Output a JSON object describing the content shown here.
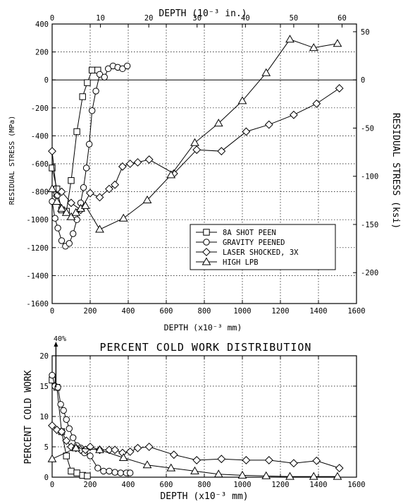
{
  "chart_data": [
    {
      "type": "line",
      "title": "",
      "xlabel": "DEPTH (x10⁻³ mm)",
      "ylabel": "RESIDUAL STRESS (MPa)",
      "x2label": "DEPTH (10⁻³ in.)",
      "y2label": "RESIDUAL STRESS (ksi)",
      "xlim": [
        0,
        1600
      ],
      "ylim": [
        -1600,
        400
      ],
      "x2lim": [
        0,
        62.99
      ],
      "y2lim": [
        -232.06,
        58.02
      ],
      "xticks": [
        "0",
        "200",
        "400",
        "600",
        "800",
        "1000",
        "1200",
        "1400",
        "1600"
      ],
      "yticks": [
        "400",
        "200",
        "0",
        "-200",
        "-400",
        "-600",
        "-800",
        "-1000",
        "-1200",
        "-1400",
        "-1600"
      ],
      "x2ticks": [
        "0",
        "10",
        "20",
        "30",
        "40",
        "50",
        "60"
      ],
      "y2ticks": [
        "50",
        "0",
        "-50",
        "-100",
        "-150",
        "-200"
      ],
      "grid": true,
      "zero_line": true,
      "legend_position": "bottom-right",
      "series": [
        {
          "name": "8A SHOT PEEN",
          "marker": "square",
          "x": [
            0,
            25,
            50,
            75,
            100,
            130,
            160,
            185,
            210,
            240
          ],
          "y": [
            -630,
            -780,
            -930,
            -940,
            -720,
            -370,
            -120,
            -20,
            70,
            70
          ]
        },
        {
          "name": "GRAVITY PEENED",
          "marker": "circle",
          "x": [
            0,
            15,
            30,
            50,
            70,
            90,
            110,
            130,
            150,
            165,
            180,
            195,
            210,
            230,
            250,
            275,
            295,
            320,
            345,
            370,
            395
          ],
          "y": [
            -870,
            -990,
            -1060,
            -1150,
            -1190,
            -1170,
            -1100,
            -1000,
            -880,
            -770,
            -630,
            -460,
            -220,
            -80,
            40,
            20,
            80,
            100,
            90,
            80,
            100
          ]
        },
        {
          "name": "LASER SHOCKED, 3X",
          "marker": "diamond",
          "x": [
            0,
            25,
            50,
            100,
            150,
            200,
            250,
            300,
            330,
            370,
            410,
            450,
            510,
            640,
            760,
            890,
            1020,
            1140,
            1270,
            1390,
            1510
          ],
          "y": [
            -510,
            -830,
            -800,
            -880,
            -930,
            -810,
            -840,
            -780,
            -750,
            -620,
            -600,
            -590,
            -570,
            -670,
            -500,
            -510,
            -370,
            -320,
            -250,
            -170,
            -60
          ]
        },
        {
          "name": "HIGH LPB",
          "marker": "triangle",
          "x": [
            0,
            25,
            50,
            75,
            100,
            125,
            150,
            175,
            250,
            375,
            500,
            625,
            750,
            875,
            1000,
            1125,
            1250,
            1375,
            1500
          ],
          "y": [
            -780,
            -870,
            -920,
            -950,
            -980,
            -950,
            -920,
            -900,
            -1070,
            -990,
            -860,
            -680,
            -450,
            -310,
            -150,
            50,
            290,
            230,
            260
          ]
        }
      ]
    },
    {
      "type": "line",
      "title": "PERCENT COLD WORK DISTRIBUTION",
      "xlabel": "DEPTH (x10⁻³ mm)",
      "ylabel": "PERCENT COLD WORK",
      "xlim": [
        0,
        1600
      ],
      "ylim": [
        0,
        20
      ],
      "xticks": [
        "0",
        "200",
        "400",
        "600",
        "800",
        "1000",
        "1200",
        "1400",
        "1600"
      ],
      "yticks": [
        "20",
        "15",
        "10",
        "5",
        "0"
      ],
      "grid": true,
      "annotation": "40%",
      "series": [
        {
          "name": "8A SHOT PEEN",
          "marker": "square",
          "x": [
            0,
            25,
            50,
            75,
            100,
            130,
            160,
            185
          ],
          "y": [
            16,
            14.8,
            7.5,
            3.5,
            1,
            0.7,
            0.3,
            0.2
          ]
        },
        {
          "name": "GRAVITY PEENED",
          "marker": "circle",
          "x": [
            0,
            15,
            30,
            45,
            60,
            75,
            90,
            110,
            130,
            150,
            170,
            200,
            240,
            270,
            300,
            330,
            360,
            390,
            410
          ],
          "y": [
            16.8,
            15,
            14.8,
            12,
            11,
            9.5,
            8,
            6.5,
            5.2,
            4.8,
            4,
            3.5,
            1.5,
            1,
            1,
            0.8,
            0.7,
            0.7,
            0.7
          ]
        },
        {
          "name": "LASER SHOCKED, 3X",
          "marker": "diamond",
          "x": [
            0,
            25,
            50,
            75,
            100,
            125,
            150,
            175,
            200,
            250,
            300,
            330,
            370,
            410,
            450,
            510,
            640,
            760,
            890,
            1020,
            1140,
            1270,
            1390,
            1510
          ],
          "y": [
            8.5,
            7.8,
            7.5,
            6,
            5,
            4.8,
            4.5,
            4.5,
            5,
            4.5,
            4.5,
            4.5,
            4,
            4.2,
            4.8,
            5,
            3.7,
            2.8,
            3,
            2.8,
            2.8,
            2.3,
            2.7,
            1.5
          ]
        },
        {
          "name": "HIGH LPB",
          "marker": "triangle",
          "x": [
            0,
            125,
            250,
            375,
            500,
            625,
            750,
            875,
            1000,
            1125,
            1250,
            1375,
            1500
          ],
          "y": [
            3,
            4.8,
            4.5,
            3.2,
            2,
            1.5,
            1,
            0.5,
            0.3,
            0.2,
            0.1,
            0.1,
            0.1
          ]
        }
      ]
    }
  ]
}
